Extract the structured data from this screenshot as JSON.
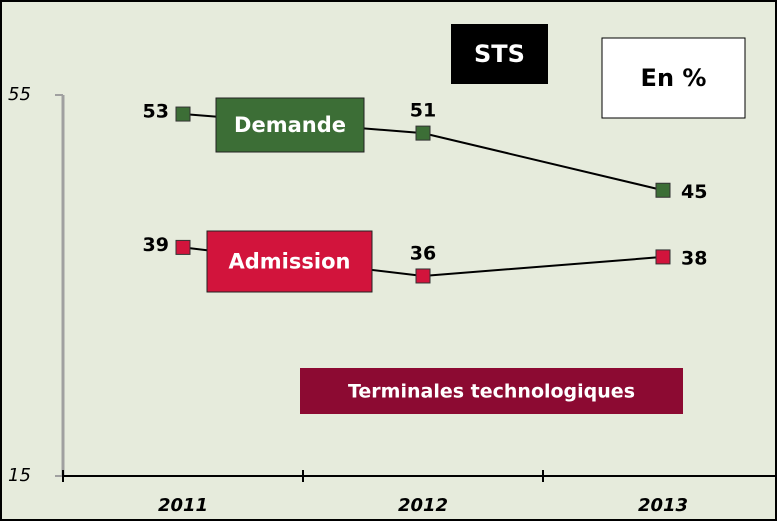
{
  "chart_data": {
    "type": "line",
    "title": "STS",
    "subtitle": "En %",
    "annotations": [
      "Terminales technologiques"
    ],
    "categories": [
      "2011",
      "2012",
      "2013"
    ],
    "series": [
      {
        "name": "Demande",
        "color": "#3c6e36",
        "values": [
          53,
          51,
          45
        ]
      },
      {
        "name": "Admission",
        "color": "#d2143c",
        "values": [
          39,
          36,
          38
        ]
      }
    ],
    "ylim": [
      15,
      55
    ],
    "yticks": [
      15,
      55
    ]
  }
}
